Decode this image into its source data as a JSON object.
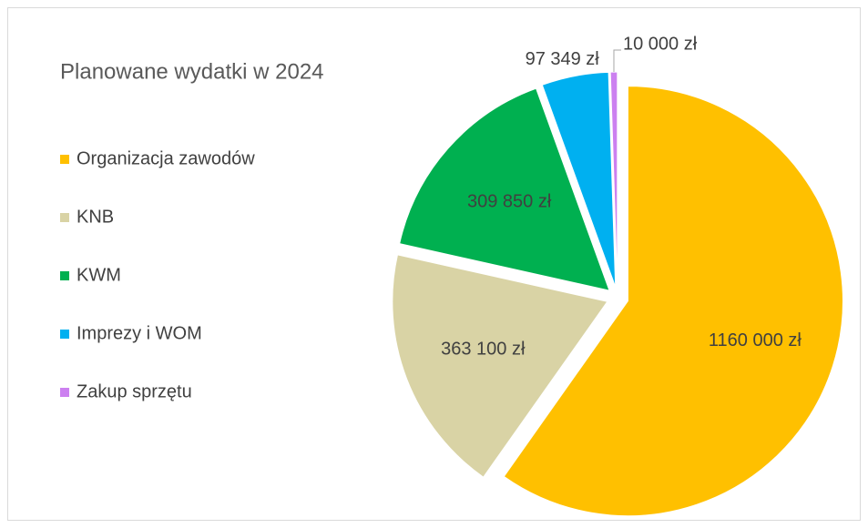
{
  "chart_data": {
    "type": "pie",
    "title": "Planowane wydatki w 2024",
    "categories": [
      "Organizacja zawodów",
      "KNB",
      "KWM",
      "Imprezy i WOM",
      "Zakup sprzętu"
    ],
    "values": [
      1160000,
      363100,
      309850,
      97349,
      10000
    ],
    "value_labels": [
      "1160 000 zł",
      "363 100 zł",
      "309 850 zł",
      "97 349 zł",
      "10 000 zł"
    ],
    "colors": [
      "#FFC000",
      "#D9D3A5",
      "#00B050",
      "#00B0F0",
      "#CC80F0"
    ],
    "legend": "left"
  }
}
